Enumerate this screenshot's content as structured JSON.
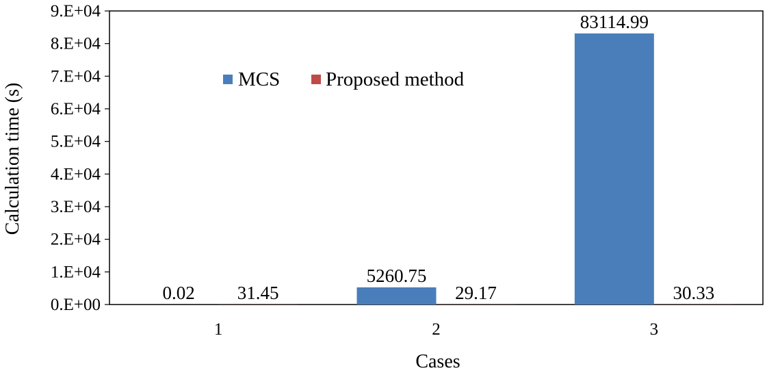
{
  "chart_data": {
    "type": "bar",
    "categories": [
      "1",
      "2",
      "3"
    ],
    "series": [
      {
        "name": "MCS",
        "values": [
          0.02,
          5260.75,
          83114.99
        ],
        "labels": [
          "0.02",
          "5260.75",
          "83114.99"
        ],
        "color": "#4a7ebb"
      },
      {
        "name": "Proposed method",
        "values": [
          31.45,
          29.17,
          30.33
        ],
        "labels": [
          "31.45",
          "29.17",
          "30.33"
        ],
        "color": "#be4b48"
      }
    ],
    "xlabel": "Cases",
    "ylabel": "Calculation time (s)",
    "ylim": [
      0,
      90000
    ],
    "yticks": [
      0,
      10000,
      20000,
      30000,
      40000,
      50000,
      60000,
      70000,
      80000,
      90000
    ],
    "ytick_labels": [
      "0.E+00",
      "1.E+04",
      "2.E+04",
      "3.E+04",
      "4.E+04",
      "5.E+04",
      "6.E+04",
      "7.E+04",
      "8.E+04",
      "9.E+04"
    ],
    "grid": false,
    "legend_position": "upper-left-inside"
  }
}
